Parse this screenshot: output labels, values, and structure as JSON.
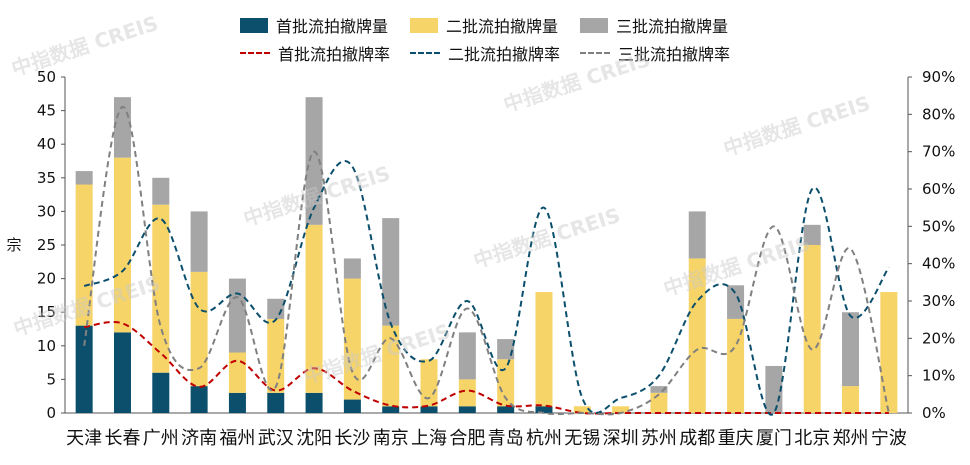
{
  "watermark": "中指数据 CREIS",
  "chart_data": {
    "type": "bar",
    "categories": [
      "天津",
      "长春",
      "广州",
      "济南",
      "福州",
      "武汉",
      "沈阳",
      "长沙",
      "南京",
      "上海",
      "合肥",
      "青岛",
      "杭州",
      "无锡",
      "深圳",
      "苏州",
      "成都",
      "重庆",
      "厦门",
      "北京",
      "郑州",
      "宁波"
    ],
    "series": [
      {
        "name": "首批流拍撤牌量",
        "kind": "bar",
        "color": "#0b4f6c",
        "axis": "left",
        "values": [
          13,
          12,
          6,
          4,
          3,
          3,
          3,
          2,
          1,
          1,
          1,
          1,
          1,
          0,
          0,
          0,
          0,
          0,
          0,
          0,
          0,
          0
        ]
      },
      {
        "name": "二批流拍撤牌量",
        "kind": "bar",
        "color": "#f7d468",
        "axis": "left",
        "values": [
          21,
          26,
          25,
          17,
          6,
          11,
          25,
          18,
          12,
          7,
          4,
          7,
          17,
          1,
          1,
          3,
          23,
          14,
          0,
          25,
          4,
          18
        ]
      },
      {
        "name": "三批流拍撤牌量",
        "kind": "bar",
        "color": "#a6a6a6",
        "axis": "left",
        "values": [
          2,
          9,
          4,
          9,
          11,
          3,
          19,
          3,
          16,
          0,
          7,
          3,
          0,
          0,
          0,
          1,
          7,
          5,
          7,
          3,
          11,
          0
        ]
      },
      {
        "name": "首批流拍撤牌率",
        "kind": "line",
        "color": "#c00000",
        "axis": "right",
        "values": [
          23,
          24,
          16,
          7,
          14,
          6,
          12,
          6,
          2,
          2,
          6,
          2,
          2,
          0,
          0,
          0,
          0,
          0,
          0,
          0,
          0,
          0
        ]
      },
      {
        "name": "二批流拍撤牌率",
        "kind": "line",
        "color": "#0b4f6c",
        "axis": "right",
        "values": [
          34,
          38,
          52,
          28,
          32,
          25,
          55,
          66,
          24,
          14,
          30,
          12,
          55,
          4,
          4,
          10,
          30,
          32,
          0,
          60,
          26,
          39
        ]
      },
      {
        "name": "三批流拍撤牌率",
        "kind": "line",
        "color": "#808080",
        "axis": "right",
        "values": [
          18,
          82,
          23,
          12,
          31,
          7,
          70,
          11,
          20,
          4,
          28,
          4,
          0,
          0,
          0,
          5,
          17,
          18,
          50,
          17,
          44,
          0
        ]
      }
    ],
    "ylabel": "宗",
    "ylim": [
      0,
      50
    ],
    "y_ticks": [
      0,
      5,
      10,
      15,
      20,
      25,
      30,
      35,
      40,
      45,
      50
    ],
    "y2lim": [
      0,
      90
    ],
    "y2_ticks": [
      "0%",
      "10%",
      "20%",
      "30%",
      "40%",
      "50%",
      "60%",
      "70%",
      "80%",
      "90%"
    ],
    "legend_placement": "top-center",
    "grid": false
  }
}
